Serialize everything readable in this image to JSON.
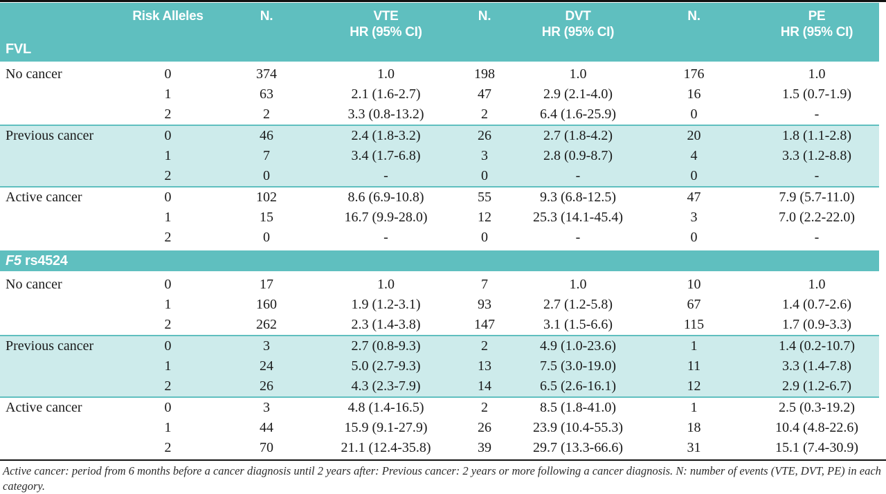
{
  "colors": {
    "teal": "#5fbfbf",
    "light_teal": "#cdebeb",
    "text": "#1a1a1a"
  },
  "table": {
    "header": {
      "col_risk_alleles": "Risk Alleles",
      "col_n": "N.",
      "col_vte": "VTE",
      "col_dvt": "DVT",
      "col_pe": "PE",
      "hr_line": "HR (95% CI)"
    },
    "sections": [
      {
        "title_italic": "",
        "title_rest": "FVL",
        "groups": [
          {
            "label": "No cancer",
            "shaded": false,
            "rows": [
              [
                "0",
                "374",
                "1.0",
                "198",
                "1.0",
                "176",
                "1.0"
              ],
              [
                "1",
                "63",
                "2.1 (1.6-2.7)",
                "47",
                "2.9 (2.1-4.0)",
                "16",
                "1.5 (0.7-1.9)"
              ],
              [
                "2",
                "2",
                "3.3 (0.8-13.2)",
                "2",
                "6.4 (1.6-25.9)",
                "0",
                "-"
              ]
            ]
          },
          {
            "label": "Previous cancer",
            "shaded": true,
            "rows": [
              [
                "0",
                "46",
                "2.4 (1.8-3.2)",
                "26",
                "2.7 (1.8-4.2)",
                "20",
                "1.8 (1.1-2.8)"
              ],
              [
                "1",
                "7",
                "3.4 (1.7-6.8)",
                "3",
                "2.8 (0.9-8.7)",
                "4",
                "3.3 (1.2-8.8)"
              ],
              [
                "2",
                "0",
                "-",
                "0",
                "-",
                "0",
                "-"
              ]
            ]
          },
          {
            "label": "Active cancer",
            "shaded": false,
            "rows": [
              [
                "0",
                "102",
                "8.6 (6.9-10.8)",
                "55",
                "9.3 (6.8-12.5)",
                "47",
                "7.9 (5.7-11.0)"
              ],
              [
                "1",
                "15",
                "16.7 (9.9-28.0)",
                "12",
                "25.3 (14.1-45.4)",
                "3",
                "7.0 (2.2-22.0)"
              ],
              [
                "2",
                "0",
                "-",
                "0",
                "-",
                "0",
                "-"
              ]
            ]
          }
        ]
      },
      {
        "title_italic": "F5",
        "title_rest": " rs4524",
        "groups": [
          {
            "label": "No cancer",
            "shaded": false,
            "rows": [
              [
                "0",
                "17",
                "1.0",
                "7",
                "1.0",
                "10",
                "1.0"
              ],
              [
                "1",
                "160",
                "1.9 (1.2-3.1)",
                "93",
                "2.7 (1.2-5.8)",
                "67",
                "1.4 (0.7-2.6)"
              ],
              [
                "2",
                "262",
                "2.3 (1.4-3.8)",
                "147",
                "3.1 (1.5-6.6)",
                "115",
                "1.7 (0.9-3.3)"
              ]
            ]
          },
          {
            "label": "Previous cancer",
            "shaded": true,
            "rows": [
              [
                "0",
                "3",
                "2.7 (0.8-9.3)",
                "2",
                "4.9 (1.0-23.6)",
                "1",
                "1.4 (0.2-10.7)"
              ],
              [
                "1",
                "24",
                "5.0 (2.7-9.3)",
                "13",
                "7.5 (3.0-19.0)",
                "11",
                "3.3 (1.4-7.8)"
              ],
              [
                "2",
                "26",
                "4.3 (2.3-7.9)",
                "14",
                "6.5 (2.6-16.1)",
                "12",
                "2.9 (1.2-6.7)"
              ]
            ]
          },
          {
            "label": "Active cancer",
            "shaded": false,
            "rows": [
              [
                "0",
                "3",
                "4.8 (1.4-16.5)",
                "2",
                "8.5 (1.8-41.0)",
                "1",
                "2.5 (0.3-19.2)"
              ],
              [
                "1",
                "44",
                "15.9 (9.1-27.9)",
                "26",
                "23.9 (10.4-55.3)",
                "18",
                "10.4 (4.8-22.6)"
              ],
              [
                "2",
                "70",
                "21.1 (12.4-35.8)",
                "39",
                "29.7 (13.3-66.6)",
                "31",
                "15.1 (7.4-30.9)"
              ]
            ]
          }
        ]
      }
    ],
    "footnote": "Active cancer: period from 6 months before a cancer diagnosis until 2 years after: Previous cancer: 2 years or more following a cancer diagnosis. N: number of events (VTE, DVT, PE) in each category."
  }
}
